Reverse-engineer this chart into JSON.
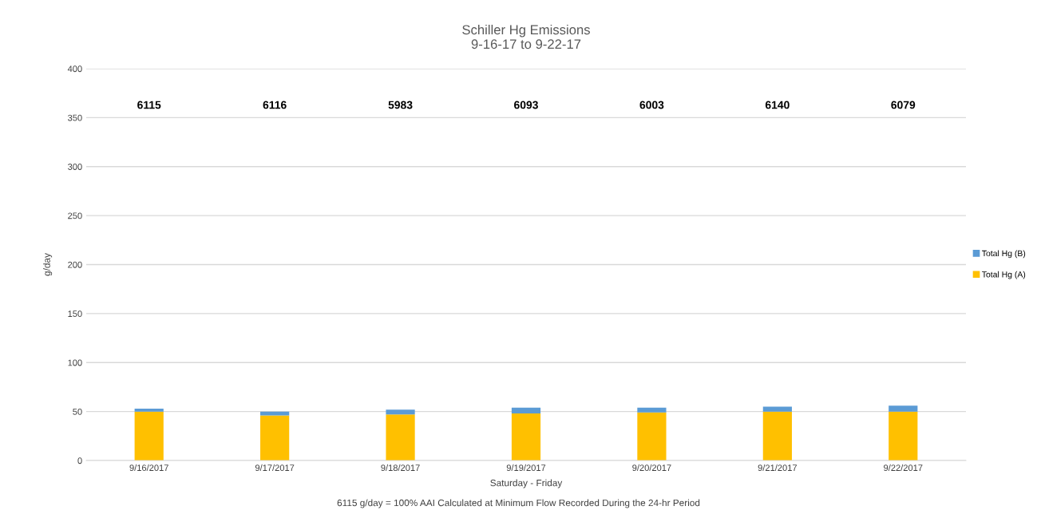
{
  "chart_data": {
    "type": "bar",
    "title": "Schiller Hg Emissions\n9-16-17 to 9-22-17",
    "xlabel": "Saturday - Friday",
    "ylabel": "g/day",
    "categories": [
      "9/16/2017",
      "9/17/2017",
      "9/18/2017",
      "9/19/2017",
      "9/20/2017",
      "9/21/2017",
      "9/22/2017"
    ],
    "stacked": true,
    "series": [
      {
        "name": "Total Hg (A)",
        "color": "#ffc000",
        "values": [
          50,
          46,
          47,
          48,
          49,
          50,
          50
        ]
      },
      {
        "name": "Total Hg (B)",
        "color": "#5b9bd5",
        "values": [
          3,
          4,
          5,
          6,
          5,
          5,
          6
        ]
      }
    ],
    "ylim": [
      0,
      400
    ],
    "yticks": [
      0,
      50,
      100,
      150,
      200,
      250,
      300,
      350,
      400
    ],
    "grid": "y",
    "legend": "right",
    "annotations": [
      "6115",
      "6116",
      "5983",
      "6093",
      "6003",
      "6140",
      "6079",
      "6115 g/day = 100% AAI Calculated at Minimum Flow Recorded During the 24-hr Period"
    ]
  }
}
